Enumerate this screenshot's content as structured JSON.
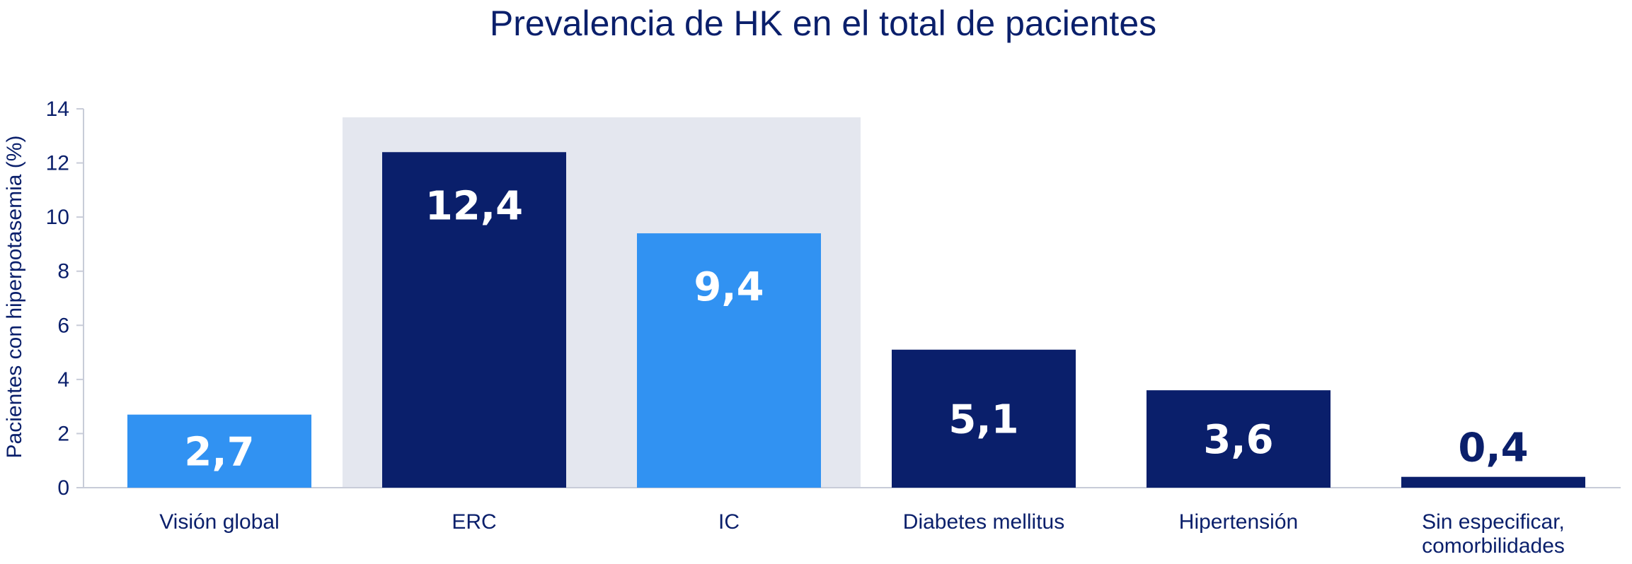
{
  "chart_data": {
    "type": "bar",
    "title": "Prevalencia de HK en el total de pacientes",
    "ylabel": "Pacientes con hiperpotasemia (%)",
    "xlabel": "",
    "ylim": [
      0,
      14
    ],
    "yticks": [
      0,
      2,
      4,
      6,
      8,
      10,
      12,
      14
    ],
    "categories": [
      [
        "Visión global"
      ],
      [
        "ERC"
      ],
      [
        "IC"
      ],
      [
        "Diabetes mellitus"
      ],
      [
        "Hipertensión"
      ],
      [
        "Sin especificar,",
        "comorbilidades"
      ]
    ],
    "values": [
      2.7,
      12.4,
      9.4,
      5.1,
      3.6,
      0.4
    ],
    "value_labels": [
      "2,7",
      "12,4",
      "9,4",
      "5,1",
      "3,6",
      "0,4"
    ],
    "bar_colors": [
      "#3192f2",
      "#0a1f6b",
      "#3192f2",
      "#0a1f6b",
      "#0a1f6b",
      "#0a1f6b"
    ],
    "label_colors": [
      "#ffffff",
      "#ffffff",
      "#ffffff",
      "#ffffff",
      "#ffffff",
      "#0a1f6b"
    ],
    "highlight_band": {
      "from_category": 1,
      "to_category": 2,
      "color": "#e4e7ef"
    },
    "axis_color": "#c8ccd8",
    "text_color": "#0a1f6b",
    "grid": false,
    "legend": "none"
  }
}
